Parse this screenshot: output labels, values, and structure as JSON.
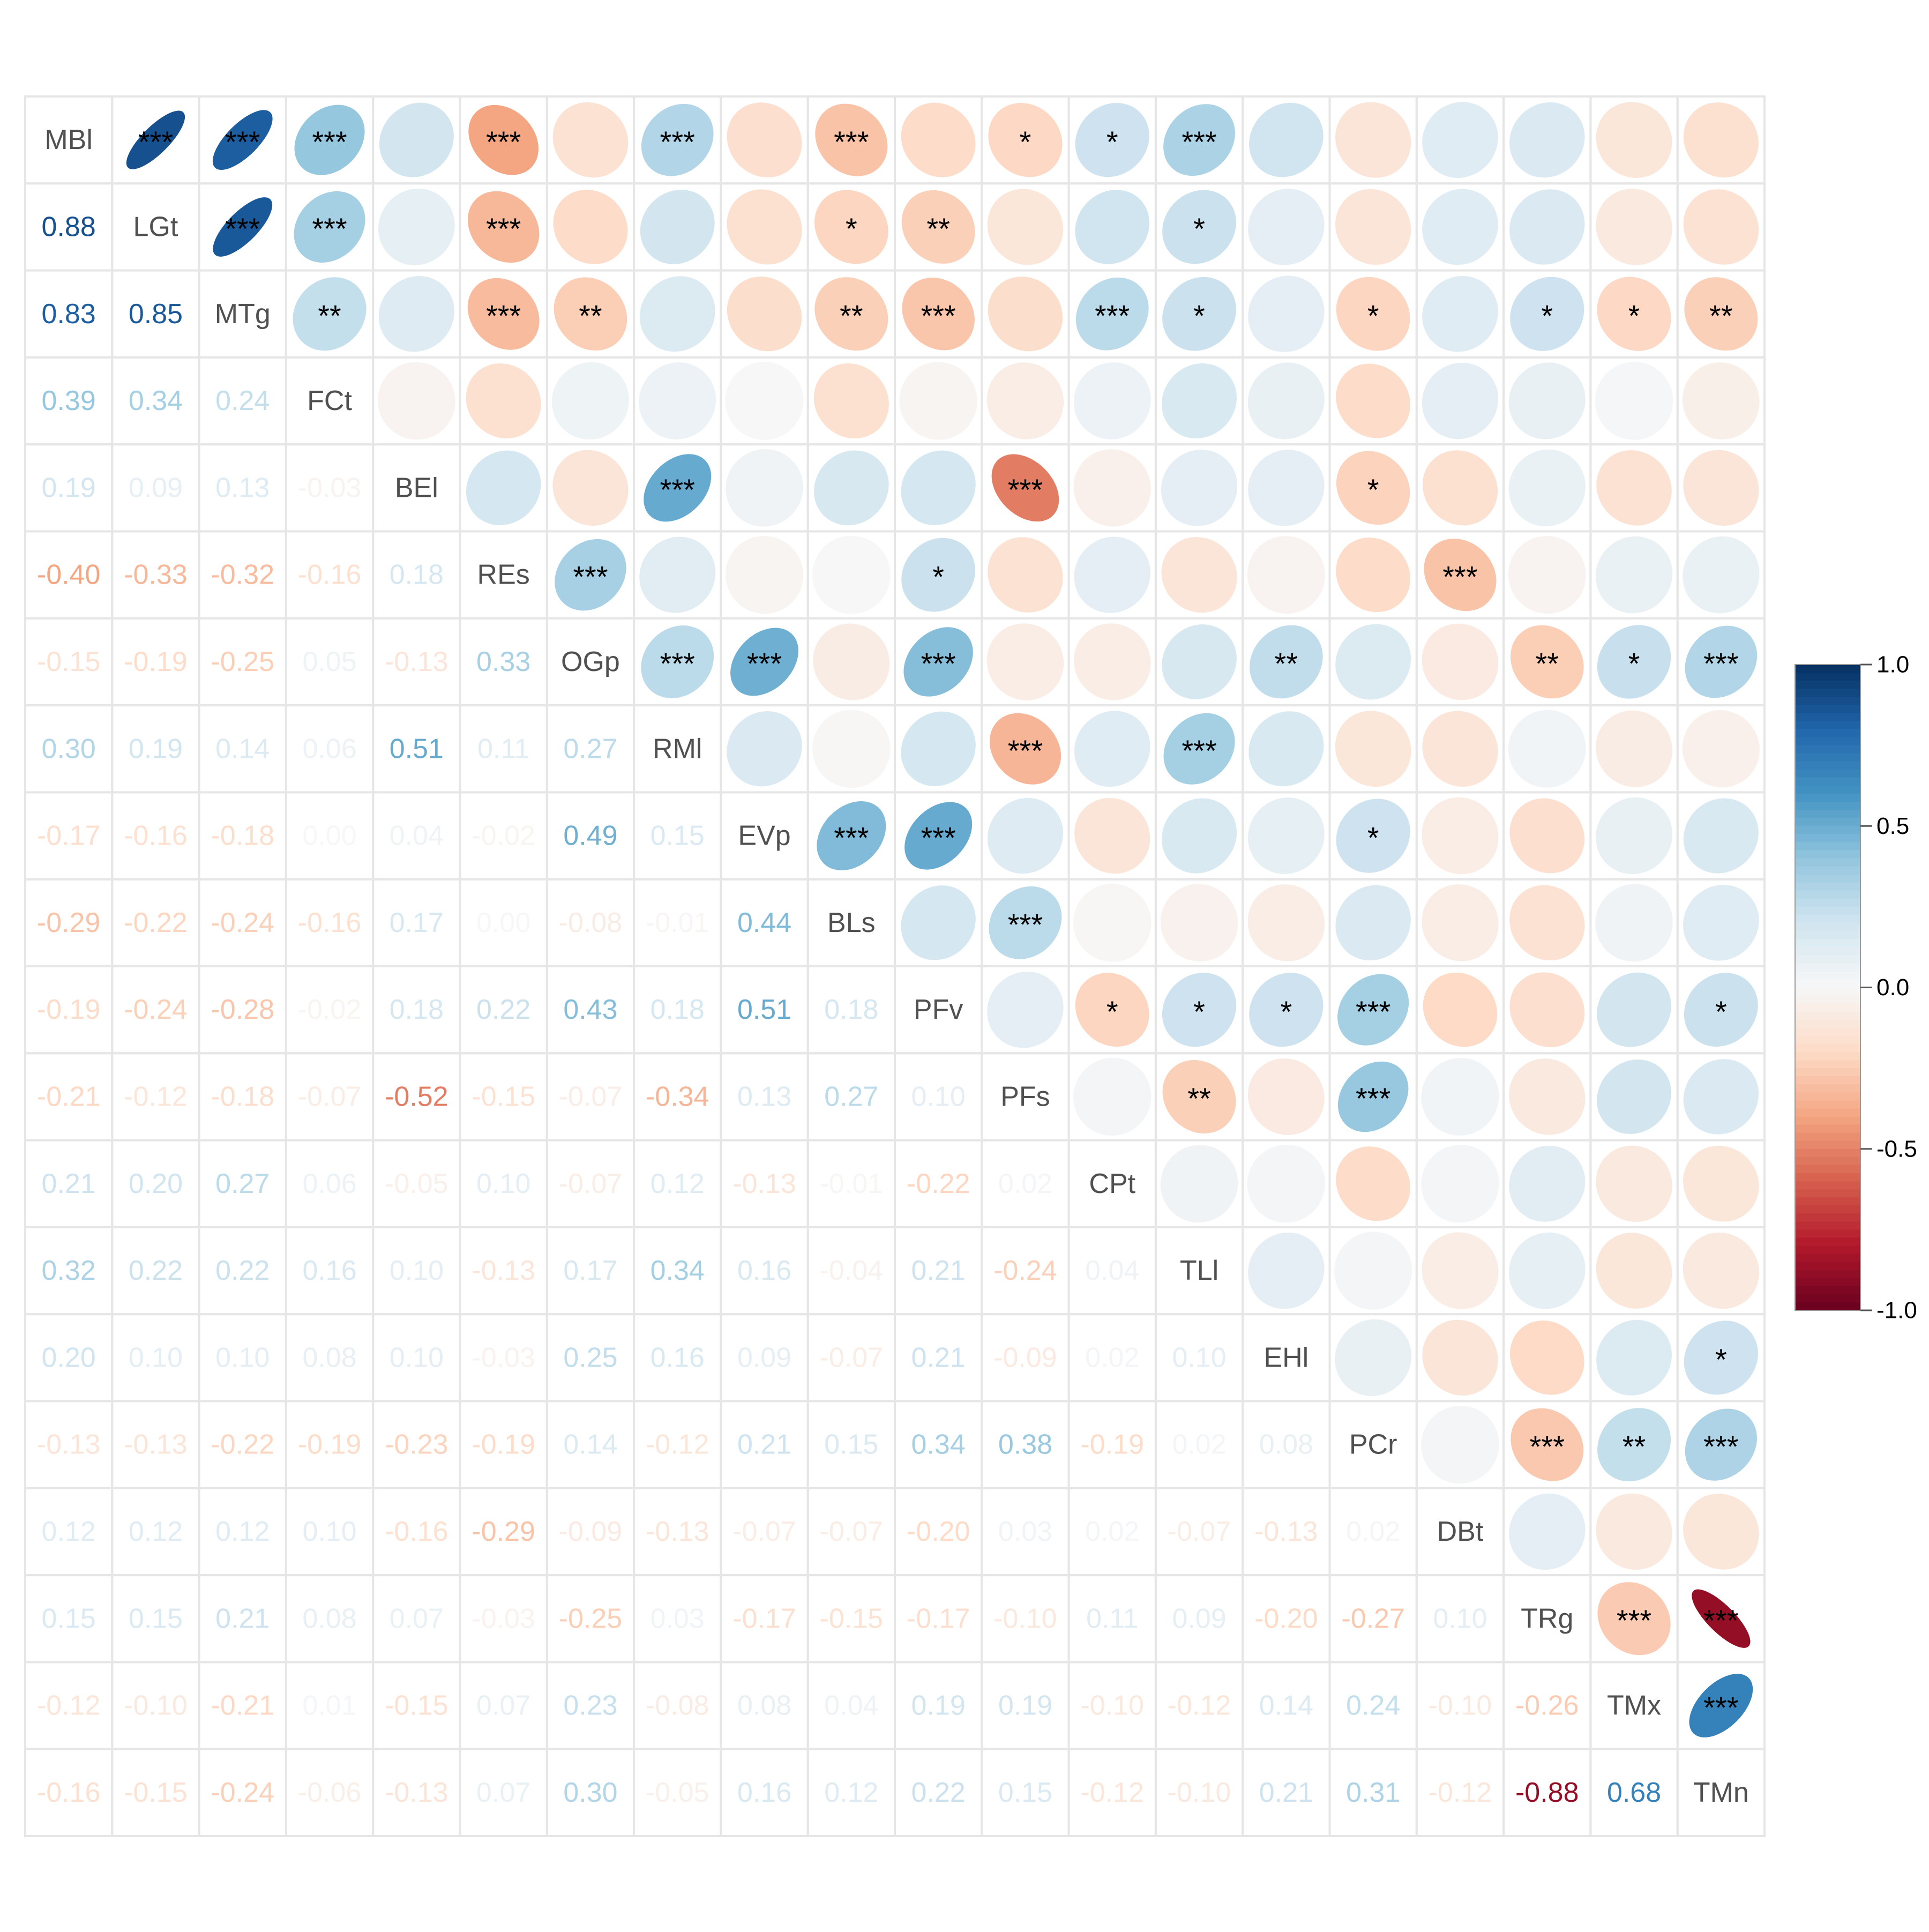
{
  "chart_data": {
    "type": "heatmap",
    "subtype": "correlation-matrix-mixed",
    "lower": "number",
    "upper": "ellipse",
    "variables": [
      "MBl",
      "LGt",
      "MTg",
      "FCt",
      "BEl",
      "REs",
      "OGp",
      "RMl",
      "EVp",
      "BLs",
      "PFv",
      "PFs",
      "CPt",
      "TLl",
      "EHl",
      "PCr",
      "DBt",
      "TRg",
      "TMx",
      "TMn"
    ],
    "correlations": [
      [
        1.0,
        0.88,
        0.83,
        0.39,
        0.19,
        -0.4,
        -0.15,
        0.3,
        -0.17,
        -0.29,
        -0.19,
        -0.21,
        0.21,
        0.32,
        0.2,
        -0.13,
        0.12,
        0.15,
        -0.12,
        -0.16
      ],
      [
        0.88,
        1.0,
        0.85,
        0.34,
        0.09,
        -0.33,
        -0.19,
        0.19,
        -0.16,
        -0.22,
        -0.24,
        -0.12,
        0.2,
        0.22,
        0.1,
        -0.13,
        0.12,
        0.15,
        -0.1,
        -0.15
      ],
      [
        0.83,
        0.85,
        1.0,
        0.24,
        0.13,
        -0.32,
        -0.25,
        0.14,
        -0.18,
        -0.24,
        -0.28,
        -0.18,
        0.27,
        0.22,
        0.1,
        -0.22,
        0.12,
        0.21,
        -0.21,
        -0.24
      ],
      [
        0.39,
        0.34,
        0.24,
        1.0,
        -0.03,
        -0.16,
        0.05,
        0.06,
        0.0,
        -0.16,
        -0.02,
        -0.07,
        0.06,
        0.16,
        0.08,
        -0.19,
        0.1,
        0.08,
        0.01,
        -0.06
      ],
      [
        0.19,
        0.09,
        0.13,
        -0.03,
        1.0,
        0.18,
        -0.13,
        0.51,
        0.04,
        0.17,
        0.18,
        -0.52,
        -0.05,
        0.1,
        0.1,
        -0.23,
        -0.16,
        0.07,
        -0.15,
        -0.13
      ],
      [
        -0.4,
        -0.33,
        -0.32,
        -0.16,
        0.18,
        1.0,
        0.33,
        0.11,
        -0.02,
        0.0,
        0.22,
        -0.15,
        0.1,
        -0.13,
        -0.03,
        -0.19,
        -0.29,
        -0.03,
        0.07,
        0.07
      ],
      [
        -0.15,
        -0.19,
        -0.25,
        0.05,
        -0.13,
        0.33,
        1.0,
        0.27,
        0.49,
        -0.08,
        0.43,
        -0.07,
        -0.07,
        0.17,
        0.25,
        0.14,
        -0.09,
        -0.25,
        0.23,
        0.3
      ],
      [
        0.3,
        0.19,
        0.14,
        0.06,
        0.51,
        0.11,
        0.27,
        1.0,
        0.15,
        -0.01,
        0.18,
        -0.34,
        0.12,
        0.34,
        0.16,
        -0.12,
        -0.13,
        0.03,
        -0.08,
        -0.05
      ],
      [
        -0.17,
        -0.16,
        -0.18,
        0.0,
        0.04,
        -0.02,
        0.49,
        0.15,
        1.0,
        0.44,
        0.51,
        0.13,
        -0.13,
        0.16,
        0.09,
        0.21,
        -0.07,
        -0.17,
        0.08,
        0.16
      ],
      [
        -0.29,
        -0.22,
        -0.24,
        -0.16,
        0.17,
        0.0,
        -0.08,
        -0.01,
        0.44,
        1.0,
        0.18,
        0.27,
        -0.01,
        -0.04,
        -0.07,
        0.15,
        -0.07,
        -0.15,
        0.04,
        0.12
      ],
      [
        -0.19,
        -0.24,
        -0.28,
        -0.02,
        0.18,
        0.22,
        0.43,
        0.18,
        0.51,
        0.18,
        1.0,
        0.1,
        -0.22,
        0.21,
        0.21,
        0.34,
        -0.2,
        -0.17,
        0.19,
        0.22
      ],
      [
        -0.21,
        -0.12,
        -0.18,
        -0.07,
        -0.52,
        -0.15,
        -0.07,
        -0.34,
        0.13,
        0.27,
        0.1,
        1.0,
        0.02,
        -0.24,
        -0.09,
        0.38,
        0.03,
        -0.1,
        0.19,
        0.15
      ],
      [
        0.21,
        0.2,
        0.27,
        0.06,
        -0.05,
        0.1,
        -0.07,
        0.12,
        -0.13,
        -0.01,
        -0.22,
        0.02,
        1.0,
        0.04,
        0.02,
        -0.19,
        0.02,
        0.11,
        -0.1,
        -0.12
      ],
      [
        0.32,
        0.22,
        0.22,
        0.16,
        0.1,
        -0.13,
        0.17,
        0.34,
        0.16,
        -0.04,
        0.21,
        -0.24,
        0.04,
        1.0,
        0.1,
        0.02,
        -0.07,
        0.09,
        -0.12,
        -0.1
      ],
      [
        0.2,
        0.1,
        0.1,
        0.08,
        0.1,
        -0.03,
        0.25,
        0.16,
        0.09,
        -0.07,
        0.21,
        -0.09,
        0.02,
        0.1,
        1.0,
        0.08,
        -0.13,
        -0.2,
        0.14,
        0.21
      ],
      [
        -0.13,
        -0.13,
        -0.22,
        -0.19,
        -0.23,
        -0.19,
        0.14,
        -0.12,
        0.21,
        0.15,
        0.34,
        0.38,
        -0.19,
        0.02,
        0.08,
        1.0,
        0.02,
        -0.27,
        0.24,
        0.31
      ],
      [
        0.12,
        0.12,
        0.12,
        0.1,
        -0.16,
        -0.29,
        -0.09,
        -0.13,
        -0.07,
        -0.07,
        -0.2,
        0.03,
        0.02,
        -0.07,
        -0.13,
        0.02,
        1.0,
        0.1,
        -0.1,
        -0.12
      ],
      [
        0.15,
        0.15,
        0.21,
        0.08,
        0.07,
        -0.03,
        -0.25,
        0.03,
        -0.17,
        -0.15,
        -0.17,
        -0.1,
        0.11,
        0.09,
        -0.2,
        -0.27,
        0.1,
        1.0,
        -0.26,
        -0.88
      ],
      [
        -0.12,
        -0.1,
        -0.21,
        0.01,
        -0.15,
        0.07,
        0.23,
        -0.08,
        0.08,
        0.04,
        0.19,
        0.19,
        -0.1,
        -0.12,
        0.14,
        0.24,
        -0.1,
        -0.26,
        1.0,
        0.68
      ],
      [
        -0.16,
        -0.15,
        -0.24,
        -0.06,
        -0.13,
        0.07,
        0.3,
        -0.05,
        0.16,
        0.12,
        0.22,
        0.15,
        -0.12,
        -0.1,
        0.21,
        0.31,
        -0.12,
        -0.88,
        0.68,
        1.0
      ]
    ],
    "significance_upper": [
      [
        "",
        "***",
        "***",
        "***",
        "",
        "***",
        "",
        "***",
        "",
        "***",
        "",
        "*",
        "*",
        "***",
        "",
        "",
        "",
        "",
        "",
        ""
      ],
      [
        "",
        "",
        "***",
        "***",
        "",
        "***",
        "",
        "",
        "",
        "*",
        "**",
        "",
        "",
        "*",
        "",
        "",
        "",
        "",
        "",
        ""
      ],
      [
        "",
        "",
        "",
        "**",
        "",
        "***",
        "**",
        "",
        "",
        "**",
        "***",
        "",
        "***",
        "*",
        "",
        "*",
        "",
        "*",
        "*",
        "**"
      ],
      [
        "",
        "",
        "",
        "",
        "",
        "",
        "",
        "",
        "",
        "",
        "",
        "",
        "",
        "",
        "",
        "",
        "",
        "",
        "",
        ""
      ],
      [
        "",
        "",
        "",
        "",
        "",
        "",
        "",
        "***",
        "",
        "",
        "",
        "***",
        "",
        "",
        "",
        "*",
        "",
        "",
        "",
        ""
      ],
      [
        "",
        "",
        "",
        "",
        "",
        "",
        "***",
        "",
        "",
        "",
        "*",
        "",
        "",
        "",
        "",
        "",
        "***",
        "",
        "",
        ""
      ],
      [
        "",
        "",
        "",
        "",
        "",
        "",
        "",
        "***",
        "***",
        "",
        "***",
        "",
        "",
        "",
        "**",
        "",
        "",
        "**",
        "*",
        "***"
      ],
      [
        "",
        "",
        "",
        "",
        "",
        "",
        "",
        "",
        "",
        "",
        "",
        "***",
        "",
        "***",
        "",
        "",
        "",
        "",
        "",
        ""
      ],
      [
        "",
        "",
        "",
        "",
        "",
        "",
        "",
        "",
        "",
        "***",
        "***",
        "",
        "",
        "",
        "",
        "*",
        "",
        "",
        "",
        ""
      ],
      [
        "",
        "",
        "",
        "",
        "",
        "",
        "",
        "",
        "",
        "",
        "",
        "***",
        "",
        "",
        "",
        "",
        "",
        "",
        "",
        ""
      ],
      [
        "",
        "",
        "",
        "",
        "",
        "",
        "",
        "",
        "",
        "",
        "",
        "",
        "*",
        "*",
        "*",
        "***",
        "",
        "",
        "",
        "*"
      ],
      [
        "",
        "",
        "",
        "",
        "",
        "",
        "",
        "",
        "",
        "",
        "",
        "",
        "",
        "**",
        "",
        "***",
        "",
        "",
        "",
        ""
      ],
      [
        "",
        "",
        "",
        "",
        "",
        "",
        "",
        "",
        "",
        "",
        "",
        "",
        "",
        "",
        "",
        "",
        "",
        "",
        "",
        ""
      ],
      [
        "",
        "",
        "",
        "",
        "",
        "",
        "",
        "",
        "",
        "",
        "",
        "",
        "",
        "",
        "",
        "",
        "",
        "",
        "",
        ""
      ],
      [
        "",
        "",
        "",
        "",
        "",
        "",
        "",
        "",
        "",
        "",
        "",
        "",
        "",
        "",
        "",
        "",
        "",
        "",
        "",
        "*"
      ],
      [
        "",
        "",
        "",
        "",
        "",
        "",
        "",
        "",
        "",
        "",
        "",
        "",
        "",
        "",
        "",
        "",
        "",
        "***",
        "**",
        "***"
      ],
      [
        "",
        "",
        "",
        "",
        "",
        "",
        "",
        "",
        "",
        "",
        "",
        "",
        "",
        "",
        "",
        "",
        "",
        "",
        "",
        ""
      ],
      [
        "",
        "",
        "",
        "",
        "",
        "",
        "",
        "",
        "",
        "",
        "",
        "",
        "",
        "",
        "",
        "",
        "",
        "",
        "***",
        "***"
      ],
      [
        "",
        "",
        "",
        "",
        "",
        "",
        "",
        "",
        "",
        "",
        "",
        "",
        "",
        "",
        "",
        "",
        "",
        "",
        "",
        "***"
      ],
      [
        "",
        "",
        "",
        "",
        "",
        "",
        "",
        "",
        "",
        "",
        "",
        "",
        "",
        "",
        "",
        "",
        "",
        "",
        "",
        ""
      ]
    ],
    "color_scale": {
      "min": -1.0,
      "max": 1.0,
      "ticks": [
        "1.0",
        "0.5",
        "0.0",
        "-0.5",
        "-1.0"
      ],
      "stops": [
        "#67001F",
        "#B2182B",
        "#D6604D",
        "#F4A582",
        "#FDDBC7",
        "#F7F7F7",
        "#D1E5F0",
        "#92C5DE",
        "#4393C3",
        "#2166AC",
        "#053061"
      ]
    },
    "grid": true,
    "legend": "right"
  }
}
